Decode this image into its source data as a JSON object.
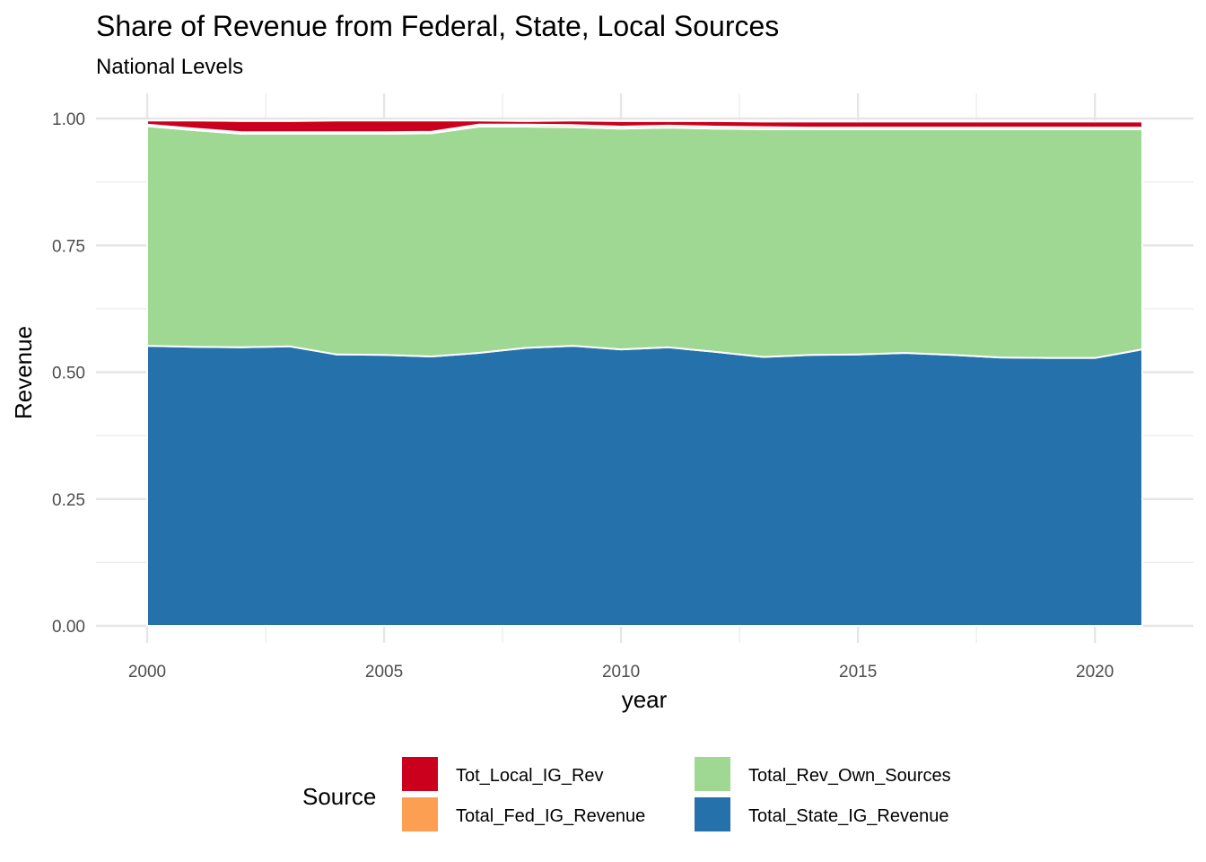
{
  "chart_data": {
    "type": "area",
    "stacked": true,
    "title": "Share of Revenue from Federal, State, Local Sources",
    "subtitle": "National Levels",
    "xlabel": "year",
    "ylabel": "Revenue",
    "xlim": [
      2000,
      2021
    ],
    "ylim": [
      0,
      1
    ],
    "x_ticks": [
      "2000",
      "2005",
      "2010",
      "2015",
      "2020"
    ],
    "y_ticks": [
      "0.00",
      "0.25",
      "0.50",
      "0.75",
      "1.00"
    ],
    "x_tick_values": [
      2000,
      2005,
      2010,
      2015,
      2020
    ],
    "y_tick_values": [
      0,
      0.25,
      0.5,
      0.75,
      1.0
    ],
    "grid": true,
    "legend_position": "bottom",
    "legend_title": "Source",
    "x": [
      2000,
      2001,
      2002,
      2003,
      2004,
      2005,
      2006,
      2007,
      2008,
      2009,
      2010,
      2011,
      2012,
      2013,
      2014,
      2015,
      2016,
      2017,
      2018,
      2019,
      2020,
      2021
    ],
    "series": [
      {
        "name": "Total_State_IG_Revenue",
        "color": "#2571ab",
        "values": [
          0.552,
          0.55,
          0.549,
          0.551,
          0.535,
          0.534,
          0.531,
          0.538,
          0.548,
          0.552,
          0.545,
          0.549,
          0.54,
          0.53,
          0.534,
          0.535,
          0.538,
          0.534,
          0.529,
          0.528,
          0.528,
          0.545
        ]
      },
      {
        "name": "Total_Rev_Own_Sources",
        "color": "#9ed892",
        "values": [
          0.433,
          0.427,
          0.421,
          0.419,
          0.435,
          0.436,
          0.44,
          0.446,
          0.436,
          0.431,
          0.435,
          0.433,
          0.44,
          0.449,
          0.445,
          0.444,
          0.441,
          0.445,
          0.45,
          0.451,
          0.451,
          0.434
        ]
      },
      {
        "name": "Total_Fed_IG_Revenue",
        "color": "#fd9f52",
        "values": [
          0.003,
          0.003,
          0.003,
          0.003,
          0.003,
          0.003,
          0.003,
          0.004,
          0.004,
          0.004,
          0.004,
          0.004,
          0.004,
          0.004,
          0.003,
          0.003,
          0.003,
          0.003,
          0.003,
          0.003,
          0.003,
          0.003
        ]
      },
      {
        "name": "Tot_Local_IG_Rev",
        "color": "#cb001d",
        "values": [
          0.008,
          0.016,
          0.022,
          0.022,
          0.023,
          0.023,
          0.022,
          0.008,
          0.007,
          0.009,
          0.011,
          0.009,
          0.011,
          0.011,
          0.012,
          0.012,
          0.012,
          0.012,
          0.012,
          0.012,
          0.012,
          0.012
        ]
      }
    ],
    "legend_order": [
      "Tot_Local_IG_Rev",
      "Total_Fed_IG_Revenue",
      "Total_Rev_Own_Sources",
      "Total_State_IG_Revenue"
    ]
  }
}
